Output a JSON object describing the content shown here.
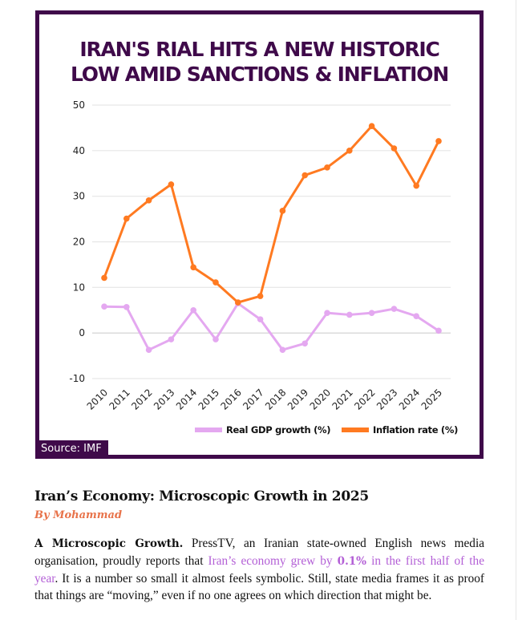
{
  "chart_data": {
    "type": "line",
    "title": [
      "IRAN'S RIAL HITS A NEW HISTORIC",
      "LOW AMID SANCTIONS & INFLATION"
    ],
    "xlabel": "",
    "ylabel": "",
    "x": [
      "2010",
      "2011",
      "2012",
      "2013",
      "2014",
      "2015",
      "2016",
      "2017",
      "2018",
      "2019",
      "2020",
      "2021",
      "2022",
      "2023",
      "2024",
      "2025"
    ],
    "ylim": [
      -10,
      50
    ],
    "yticks": [
      50,
      40,
      30,
      20,
      10,
      0,
      -10
    ],
    "grid": true,
    "legend_position": "bottom-right",
    "series": [
      {
        "name": "Real GDP growth (%)",
        "color": "#e4a8f0",
        "values": [
          5.8,
          5.7,
          -3.7,
          -1.4,
          5.0,
          -1.4,
          6.5,
          3.0,
          -3.7,
          -2.3,
          4.4,
          4.0,
          4.4,
          5.3,
          3.7,
          0.5
        ]
      },
      {
        "name": "Inflation rate (%)",
        "color": "#ff7a21",
        "values": [
          12.1,
          25.1,
          29.1,
          32.6,
          14.4,
          11.1,
          6.7,
          8.1,
          26.8,
          34.6,
          36.3,
          40.0,
          45.4,
          40.5,
          32.3,
          42.1
        ]
      }
    ],
    "source": "Source: IMF"
  },
  "colors": {
    "frame": "#3f0a4a",
    "byline": "#e8734a",
    "link": "#b35fd6"
  },
  "article": {
    "headline": "Iran’s Economy: Microscopic Growth in 2025",
    "byline": "By Mohammad",
    "lead_bold": "A Microscopic Growth.",
    "text_1": " PressTV, an Iranian state-owned English news media organisation, proudly reports that ",
    "link_1": "Iran’s economy grew by ",
    "link_bold": "0.1%",
    "link_2": " in the first half of the year",
    "text_2": ". It is a number so small it almost feels symbolic. Still, state media frames it as proof that things are “moving,” even if no one agrees on which direction that might be."
  }
}
